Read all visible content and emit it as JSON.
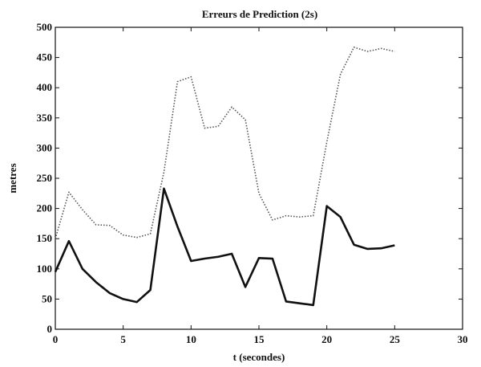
{
  "chart_data": {
    "type": "line",
    "title": "Erreurs de Prediction (2s)",
    "xlabel": "t (secondes)",
    "ylabel": "metres",
    "xlim": [
      0,
      30
    ],
    "ylim": [
      0,
      500
    ],
    "xticks": [
      0,
      5,
      10,
      15,
      20,
      25,
      30
    ],
    "yticks": [
      0,
      50,
      100,
      150,
      200,
      250,
      300,
      350,
      400,
      450,
      500
    ],
    "grid": false,
    "series": [
      {
        "style": "dotted",
        "color": "#555555",
        "x": [
          0,
          1,
          2,
          3,
          4,
          5,
          6,
          7,
          8,
          9,
          10,
          11,
          12,
          13,
          14,
          15,
          16,
          17,
          18,
          19,
          20,
          21,
          22,
          23,
          24,
          25
        ],
        "y": [
          150,
          227,
          198,
          173,
          172,
          156,
          152,
          158,
          260,
          410,
          418,
          333,
          336,
          368,
          347,
          225,
          181,
          188,
          186,
          188,
          310,
          422,
          467,
          460,
          465,
          460
        ]
      },
      {
        "style": "solid",
        "color": "#111111",
        "x": [
          0,
          1,
          2,
          3,
          4,
          5,
          6,
          7,
          8,
          9,
          10,
          11,
          12,
          13,
          14,
          15,
          16,
          17,
          18,
          19,
          20,
          21,
          22,
          23,
          24,
          25
        ],
        "y": [
          95,
          146,
          100,
          78,
          60,
          50,
          45,
          65,
          233,
          170,
          113,
          117,
          120,
          125,
          70,
          118,
          117,
          46,
          43,
          40,
          204,
          186,
          140,
          133,
          134,
          139
        ]
      }
    ]
  }
}
